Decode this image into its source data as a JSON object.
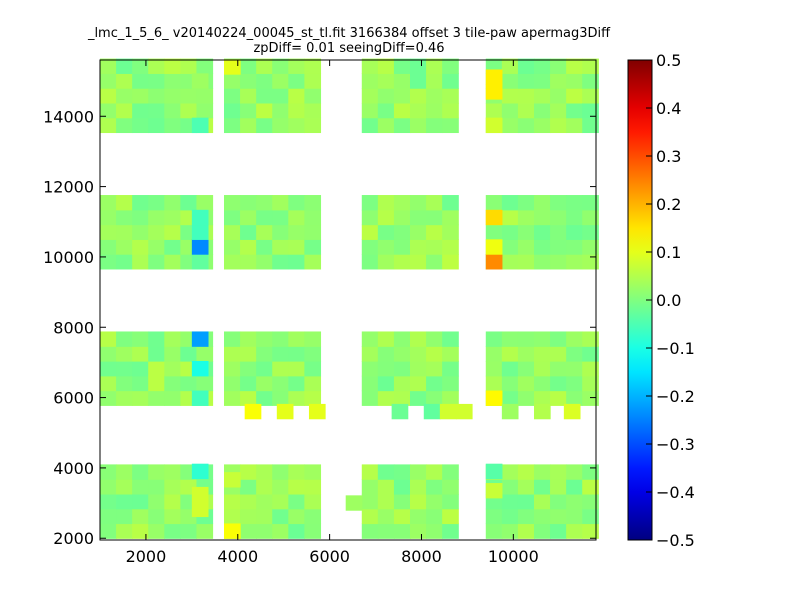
{
  "chart_data": {
    "type": "heatmap",
    "title_line1": "_lmc_1_5_6_ v20140224_00045_st_tl.fit 3166384 offset 3 tile-paw apermag3Diff",
    "title_line2": "zpDiff= 0.01 seeingDiff=0.46",
    "xlabel": "",
    "ylabel": "",
    "xlim": [
      1000,
      11800
    ],
    "ylim": [
      1950,
      15600
    ],
    "xticks": [
      2000,
      4000,
      6000,
      8000,
      10000
    ],
    "yticks": [
      2000,
      4000,
      6000,
      8000,
      10000,
      12000,
      14000
    ],
    "colorbar": {
      "colormap": "jet",
      "vmin": -0.5,
      "vmax": 0.5,
      "ticks": [
        "0.5",
        "0.4",
        "0.3",
        "0.2",
        "0.1",
        "0.0",
        "−0.1",
        "−0.2",
        "−0.3",
        "−0.4",
        "−0.5"
      ]
    },
    "cell_size": [
      350,
      420
    ],
    "detector_columns": [
      {
        "x0": 1000,
        "n": 7
      },
      {
        "x0": 3700,
        "n": 6
      },
      {
        "x0": 6700,
        "n": 6
      },
      {
        "x0": 9400,
        "n": 7
      }
    ],
    "detector_rows": [
      {
        "y0": 2000,
        "n": 5
      },
      {
        "y0": 5780,
        "n": 5
      },
      {
        "y0": 9660,
        "n": 5
      },
      {
        "y0": 13540,
        "n": 5
      }
    ],
    "base_value": 0.02,
    "gap_cells": [
      {
        "x": 3000,
        "y": 3700,
        "v": -0.08
      },
      {
        "x": 3000,
        "y": 2620,
        "v": 0.08
      },
      {
        "x": 3000,
        "y": 3040,
        "v": 0.08
      },
      {
        "x": 3000,
        "y": 5780,
        "v": -0.06
      },
      {
        "x": 3000,
        "y": 6620,
        "v": -0.1
      },
      {
        "x": 3000,
        "y": 7460,
        "v": -0.22
      },
      {
        "x": 3000,
        "y": 9660,
        "v": -0.03
      },
      {
        "x": 3000,
        "y": 10080,
        "v": -0.24
      },
      {
        "x": 3000,
        "y": 10500,
        "v": -0.06
      },
      {
        "x": 3000,
        "y": 10920,
        "v": -0.06
      },
      {
        "x": 3000,
        "y": 13540,
        "v": -0.05
      },
      {
        "x": 3000,
        "y": 14800,
        "v": 0.03
      },
      {
        "x": 3700,
        "y": 2000,
        "v": 0.12
      },
      {
        "x": 3700,
        "y": 3460,
        "v": 0.07
      },
      {
        "x": 3700,
        "y": 15200,
        "v": 0.1
      },
      {
        "x": 6350,
        "y": 2800,
        "v": 0.03
      },
      {
        "x": 9400,
        "y": 3700,
        "v": -0.04
      },
      {
        "x": 9400,
        "y": 3150,
        "v": 0.07
      },
      {
        "x": 9400,
        "y": 5780,
        "v": 0.13
      },
      {
        "x": 9400,
        "y": 9660,
        "v": 0.24
      },
      {
        "x": 9400,
        "y": 10080,
        "v": 0.11
      },
      {
        "x": 9400,
        "y": 10920,
        "v": 0.16
      },
      {
        "x": 9400,
        "y": 13540,
        "v": 0.08
      },
      {
        "x": 9400,
        "y": 14490,
        "v": 0.14
      },
      {
        "x": 9400,
        "y": 14910,
        "v": 0.14
      },
      {
        "x": 4150,
        "y": 5400,
        "v": 0.12
      },
      {
        "x": 4850,
        "y": 5400,
        "v": 0.1
      },
      {
        "x": 5550,
        "y": 5400,
        "v": 0.1
      },
      {
        "x": 7350,
        "y": 5400,
        "v": -0.02
      },
      {
        "x": 8050,
        "y": 5400,
        "v": -0.03
      },
      {
        "x": 8400,
        "y": 5400,
        "v": 0.08
      },
      {
        "x": 8750,
        "y": 5400,
        "v": 0.08
      },
      {
        "x": 9750,
        "y": 5400,
        "v": 0.03
      },
      {
        "x": 10450,
        "y": 5400,
        "v": 0.05
      },
      {
        "x": 11100,
        "y": 5400,
        "v": 0.09
      }
    ]
  }
}
